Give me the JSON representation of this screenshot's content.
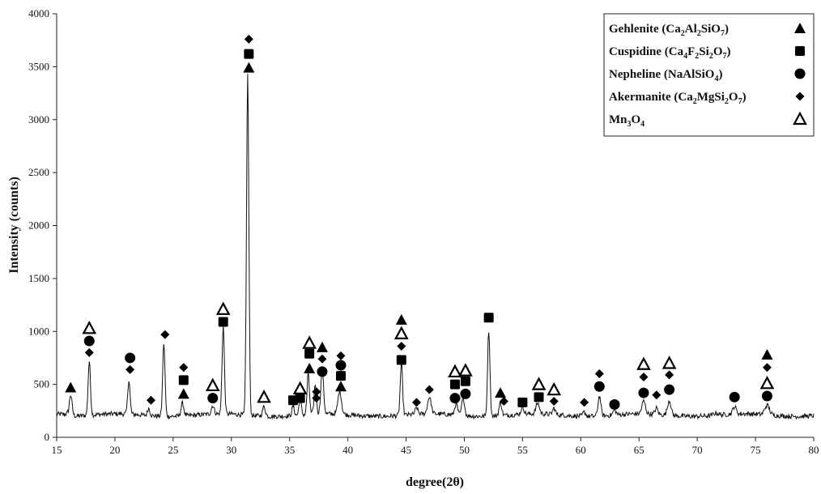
{
  "chart_data": {
    "type": "line",
    "xlabel": "degree(2θ)",
    "ylabel": "Intensity (counts)",
    "xlim": [
      15,
      80
    ],
    "ylim": [
      0,
      4000
    ],
    "xticks": [
      15,
      20,
      25,
      30,
      35,
      40,
      45,
      50,
      55,
      60,
      65,
      70,
      75,
      80
    ],
    "yticks": [
      0,
      500,
      1000,
      1500,
      2000,
      2500,
      3000,
      3500,
      4000
    ],
    "grid": false,
    "legend_position": "top-right",
    "baseline": 210,
    "peaks": [
      [
        16.2,
        410,
        0.12
      ],
      [
        17.8,
        720,
        0.1
      ],
      [
        21.2,
        530,
        0.1
      ],
      [
        22.9,
        280,
        0.1
      ],
      [
        24.2,
        900,
        0.1
      ],
      [
        25.8,
        330,
        0.12
      ],
      [
        28.4,
        290,
        0.12
      ],
      [
        29.3,
        1040,
        0.1
      ],
      [
        31.4,
        3420,
        0.1
      ],
      [
        32.8,
        300,
        0.12
      ],
      [
        35.3,
        300,
        0.1
      ],
      [
        35.9,
        360,
        0.1
      ],
      [
        36.6,
        600,
        0.1
      ],
      [
        37.2,
        490,
        0.1
      ],
      [
        37.8,
        620,
        0.12
      ],
      [
        39.3,
        430,
        0.15
      ],
      [
        44.6,
        700,
        0.1
      ],
      [
        45.9,
        270,
        0.12
      ],
      [
        47.0,
        370,
        0.15
      ],
      [
        49.3,
        320,
        0.12
      ],
      [
        49.9,
        380,
        0.12
      ],
      [
        52.1,
        1020,
        0.1
      ],
      [
        53.1,
        330,
        0.12
      ],
      [
        55.0,
        280,
        0.12
      ],
      [
        56.3,
        310,
        0.15
      ],
      [
        57.7,
        270,
        0.12
      ],
      [
        60.3,
        250,
        0.12
      ],
      [
        61.6,
        400,
        0.12
      ],
      [
        62.9,
        260,
        0.12
      ],
      [
        65.4,
        330,
        0.15
      ],
      [
        66.5,
        270,
        0.12
      ],
      [
        67.6,
        350,
        0.15
      ],
      [
        71.6,
        230,
        0.2
      ],
      [
        73.2,
        280,
        0.15
      ],
      [
        76.0,
        300,
        0.2
      ]
    ],
    "legend": [
      {
        "name": "Gehlenite",
        "formula": [
          [
            "Ca",
            ""
          ],
          [
            "2",
            "sub"
          ],
          [
            "Al",
            ""
          ],
          [
            "2",
            "sub"
          ],
          [
            "SiO",
            ""
          ],
          [
            "7",
            "sub"
          ]
        ],
        "marker": "triangle-filled"
      },
      {
        "name": "Cuspidine",
        "formula": [
          [
            "Ca",
            ""
          ],
          [
            "4",
            "sub"
          ],
          [
            "F",
            ""
          ],
          [
            "2",
            "sub"
          ],
          [
            "Si",
            ""
          ],
          [
            "2",
            "sub"
          ],
          [
            "O",
            ""
          ],
          [
            "7",
            "sub"
          ]
        ],
        "marker": "square"
      },
      {
        "name": "Nepheline",
        "formula": [
          [
            "NaAlSiO",
            ""
          ],
          [
            "4",
            "sub"
          ]
        ],
        "marker": "circle"
      },
      {
        "name": "Akermanite",
        "formula": [
          [
            "Ca",
            ""
          ],
          [
            "2",
            "sub"
          ],
          [
            "MgSi",
            ""
          ],
          [
            "2",
            "sub"
          ],
          [
            "O",
            ""
          ],
          [
            "7",
            "sub"
          ]
        ],
        "marker": "diamond"
      },
      {
        "name": "Mn3O4",
        "formula": [
          [
            "Mn",
            ""
          ],
          [
            "3",
            "sub"
          ],
          [
            "O",
            ""
          ],
          [
            "4",
            "sub"
          ]
        ],
        "marker": "triangle-open",
        "label_only_formula": true
      }
    ],
    "markers": [
      {
        "type": "triangle-filled",
        "x": 16.2,
        "y": 470
      },
      {
        "type": "triangle-open",
        "x": 17.8,
        "y": 1030
      },
      {
        "type": "circle",
        "x": 17.8,
        "y": 910
      },
      {
        "type": "diamond",
        "x": 17.8,
        "y": 800
      },
      {
        "type": "circle",
        "x": 21.3,
        "y": 750
      },
      {
        "type": "diamond",
        "x": 21.3,
        "y": 640
      },
      {
        "type": "diamond",
        "x": 23.1,
        "y": 350
      },
      {
        "type": "diamond",
        "x": 24.3,
        "y": 970
      },
      {
        "type": "diamond",
        "x": 25.9,
        "y": 660
      },
      {
        "type": "square",
        "x": 25.9,
        "y": 540
      },
      {
        "type": "triangle-filled",
        "x": 25.9,
        "y": 410
      },
      {
        "type": "triangle-open",
        "x": 28.4,
        "y": 490
      },
      {
        "type": "circle",
        "x": 28.4,
        "y": 370
      },
      {
        "type": "triangle-open",
        "x": 29.3,
        "y": 1210
      },
      {
        "type": "square",
        "x": 29.3,
        "y": 1090
      },
      {
        "type": "diamond",
        "x": 31.5,
        "y": 3760
      },
      {
        "type": "square",
        "x": 31.5,
        "y": 3620
      },
      {
        "type": "triangle-filled",
        "x": 31.5,
        "y": 3490
      },
      {
        "type": "triangle-open",
        "x": 32.8,
        "y": 380
      },
      {
        "type": "square",
        "x": 35.3,
        "y": 350
      },
      {
        "type": "triangle-open",
        "x": 35.9,
        "y": 460
      },
      {
        "type": "square",
        "x": 35.9,
        "y": 370
      },
      {
        "type": "triangle-open",
        "x": 36.7,
        "y": 890
      },
      {
        "type": "square",
        "x": 36.7,
        "y": 790
      },
      {
        "type": "triangle-filled",
        "x": 36.7,
        "y": 650
      },
      {
        "type": "diamond",
        "x": 37.3,
        "y": 430
      },
      {
        "type": "diamond",
        "x": 37.3,
        "y": 370
      },
      {
        "type": "triangle-filled",
        "x": 37.8,
        "y": 850
      },
      {
        "type": "diamond",
        "x": 37.8,
        "y": 740
      },
      {
        "type": "circle",
        "x": 37.8,
        "y": 620
      },
      {
        "type": "diamond",
        "x": 39.4,
        "y": 770
      },
      {
        "type": "circle",
        "x": 39.4,
        "y": 680
      },
      {
        "type": "square",
        "x": 39.4,
        "y": 580
      },
      {
        "type": "triangle-filled",
        "x": 39.4,
        "y": 480
      },
      {
        "type": "triangle-filled",
        "x": 44.6,
        "y": 1110
      },
      {
        "type": "triangle-open",
        "x": 44.6,
        "y": 980
      },
      {
        "type": "diamond",
        "x": 44.6,
        "y": 860
      },
      {
        "type": "square",
        "x": 44.6,
        "y": 730
      },
      {
        "type": "diamond",
        "x": 45.9,
        "y": 330
      },
      {
        "type": "diamond",
        "x": 47.0,
        "y": 450
      },
      {
        "type": "triangle-open",
        "x": 49.2,
        "y": 620
      },
      {
        "type": "square",
        "x": 49.2,
        "y": 500
      },
      {
        "type": "circle",
        "x": 49.2,
        "y": 370
      },
      {
        "type": "triangle-open",
        "x": 50.1,
        "y": 630
      },
      {
        "type": "square",
        "x": 50.1,
        "y": 530
      },
      {
        "type": "circle",
        "x": 50.1,
        "y": 410
      },
      {
        "type": "square",
        "x": 52.1,
        "y": 1130
      },
      {
        "type": "triangle-filled",
        "x": 53.1,
        "y": 420
      },
      {
        "type": "diamond",
        "x": 53.4,
        "y": 340
      },
      {
        "type": "square",
        "x": 55.0,
        "y": 330
      },
      {
        "type": "triangle-open",
        "x": 56.4,
        "y": 500
      },
      {
        "type": "square",
        "x": 56.4,
        "y": 380
      },
      {
        "type": "triangle-open",
        "x": 57.7,
        "y": 450
      },
      {
        "type": "diamond",
        "x": 57.7,
        "y": 340
      },
      {
        "type": "diamond",
        "x": 60.3,
        "y": 330
      },
      {
        "type": "diamond",
        "x": 61.6,
        "y": 600
      },
      {
        "type": "circle",
        "x": 61.6,
        "y": 480
      },
      {
        "type": "circle",
        "x": 62.9,
        "y": 310
      },
      {
        "type": "triangle-open",
        "x": 65.4,
        "y": 690
      },
      {
        "type": "diamond",
        "x": 65.4,
        "y": 570
      },
      {
        "type": "circle",
        "x": 65.4,
        "y": 420
      },
      {
        "type": "diamond",
        "x": 66.5,
        "y": 400
      },
      {
        "type": "triangle-open",
        "x": 67.6,
        "y": 700
      },
      {
        "type": "diamond",
        "x": 67.6,
        "y": 590
      },
      {
        "type": "circle",
        "x": 67.6,
        "y": 450
      },
      {
        "type": "circle",
        "x": 73.2,
        "y": 380
      },
      {
        "type": "triangle-filled",
        "x": 76.0,
        "y": 780
      },
      {
        "type": "diamond",
        "x": 76.0,
        "y": 660
      },
      {
        "type": "triangle-open",
        "x": 76.0,
        "y": 510
      },
      {
        "type": "circle",
        "x": 76.0,
        "y": 390
      }
    ]
  }
}
